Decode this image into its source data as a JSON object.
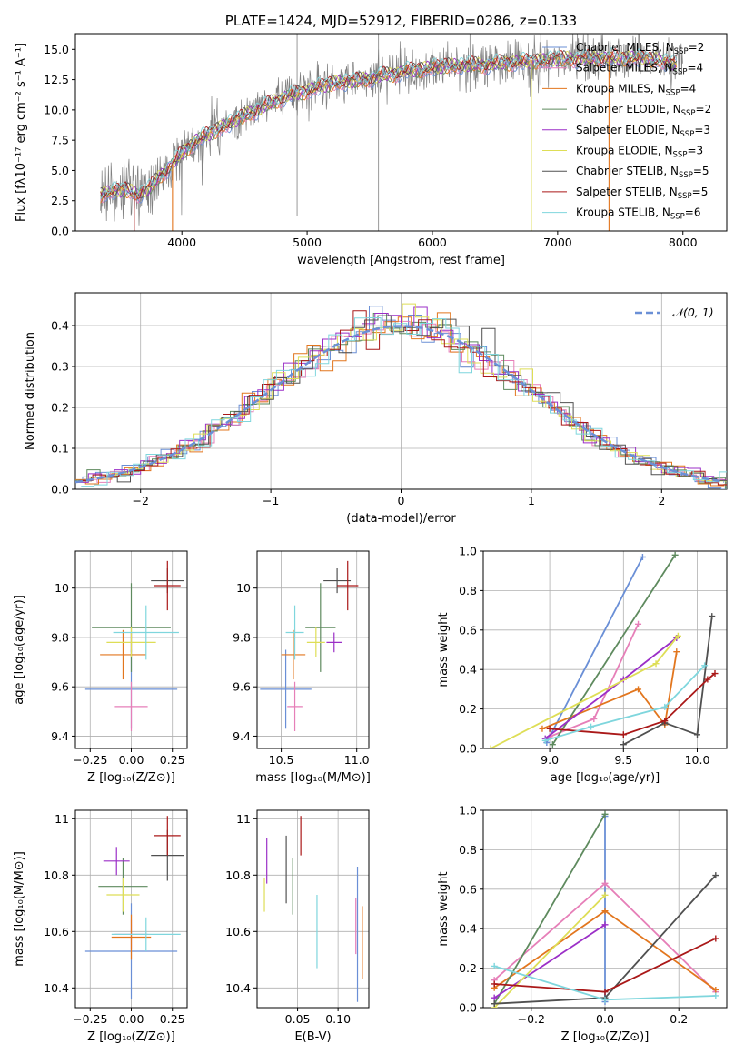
{
  "colors": {
    "miles_chabrier": "#6a8fd6",
    "miles_salpeter": "#e67fb8",
    "miles_kroupa": "#e2761e",
    "elodie_chabrier": "#5e8a5e",
    "elodie_salpeter": "#9b2fc7",
    "elodie_kroupa": "#dede56",
    "stelib_chabrier": "#505050",
    "stelib_salpeter": "#aa1818",
    "stelib_kroupa": "#7fd6dd",
    "data": "#808080",
    "grid": "#b0b0b0"
  },
  "chart_data": [
    {
      "id": "spectrum",
      "type": "line",
      "title": "PLATE=1424, MJD=52912, FIBERID=0286, z=0.133",
      "xlabel": "wavelength [Angstrom, rest frame]",
      "ylabel": "Flux [fλ10⁻¹⁷ erg cm⁻² s⁻¹ A⁻¹]",
      "xlim": [
        3150,
        8350
      ],
      "ylim": [
        0,
        16.3
      ],
      "xticks": [
        4000,
        5000,
        6000,
        7000,
        8000
      ],
      "yticks": [
        "0.0",
        "2.5",
        "5.0",
        "7.5",
        "10.0",
        "12.5",
        "15.0"
      ],
      "grid": false,
      "legend_position": "top-right",
      "legend": [
        {
          "label": "Chabrier MILES, N",
          "sub": "SSP",
          "suffix": "=2",
          "color": "miles_chabrier"
        },
        {
          "label": "Salpeter MILES, N",
          "sub": "SSP",
          "suffix": "=4",
          "color": "miles_salpeter"
        },
        {
          "label": "Kroupa MILES, N",
          "sub": "SSP",
          "suffix": "=4",
          "color": "miles_kroupa"
        },
        {
          "label": "Chabrier ELODIE, N",
          "sub": "SSP",
          "suffix": "=2",
          "color": "elodie_chabrier"
        },
        {
          "label": "Salpeter ELODIE, N",
          "sub": "SSP",
          "suffix": "=3",
          "color": "elodie_salpeter"
        },
        {
          "label": "Kroupa ELODIE, N",
          "sub": "SSP",
          "suffix": "=3",
          "color": "elodie_kroupa"
        },
        {
          "label": "Chabrier STELIB, N",
          "sub": "SSP",
          "suffix": "=5",
          "color": "stelib_chabrier"
        },
        {
          "label": "Salpeter STELIB, N",
          "sub": "SSP",
          "suffix": "=5",
          "color": "stelib_salpeter"
        },
        {
          "label": "Kroupa STELIB, N",
          "sub": "SSP",
          "suffix": "=6",
          "color": "stelib_kroupa"
        }
      ],
      "continuum": [
        [
          3350,
          3.0
        ],
        [
          3450,
          3.3
        ],
        [
          3550,
          3.4
        ],
        [
          3650,
          3.0
        ],
        [
          3750,
          3.6
        ],
        [
          3850,
          4.8
        ],
        [
          3950,
          5.8
        ],
        [
          4000,
          6.4
        ],
        [
          4100,
          7.4
        ],
        [
          4250,
          8.2
        ],
        [
          4400,
          9.0
        ],
        [
          4600,
          10.0
        ],
        [
          4800,
          11.0
        ],
        [
          5000,
          11.6
        ],
        [
          5200,
          12.2
        ],
        [
          5400,
          12.4
        ],
        [
          5600,
          12.8
        ],
        [
          5800,
          13.2
        ],
        [
          6000,
          13.5
        ],
        [
          6200,
          13.7
        ],
        [
          6400,
          13.7
        ],
        [
          6600,
          13.9
        ],
        [
          6800,
          14.0
        ],
        [
          7000,
          14.2
        ],
        [
          7200,
          14.2
        ],
        [
          7400,
          14.3
        ],
        [
          7600,
          14.3
        ],
        [
          7800,
          14.1
        ],
        [
          7950,
          13.8
        ]
      ],
      "data_spikes": [
        [
          4920,
          1.2,
          16.3
        ],
        [
          5570,
          0.0,
          16.3
        ],
        [
          6300,
          11.5,
          16.3
        ],
        [
          6865,
          12.0,
          16.3
        ],
        [
          7240,
          12.5,
          16.3
        ]
      ],
      "model_dropouts": [
        {
          "x": 3620,
          "series": "stelib_salpeter"
        },
        {
          "x": 3925,
          "series": "miles_kroupa"
        },
        {
          "x": 6790,
          "series": "elodie_kroupa"
        },
        {
          "x": 7410,
          "series": "miles_kroupa"
        }
      ]
    },
    {
      "id": "residuals",
      "type": "line",
      "xlabel": "(data-model)/error",
      "ylabel": "Normed distribution",
      "xlim": [
        -2.5,
        2.5
      ],
      "ylim": [
        0,
        0.48
      ],
      "xticks": [
        "−2",
        "−1",
        "0",
        "1",
        "2"
      ],
      "xtick_values": [
        -2,
        -1,
        0,
        1,
        2
      ],
      "yticks": [
        "0.0",
        "0.1",
        "0.2",
        "0.3",
        "0.4"
      ],
      "grid": true,
      "legend_position": "top-right",
      "gaussian_label": "𝒩(0, 1)",
      "gaussian_color": "#6a8fd6",
      "gaussian": {
        "mean": 0,
        "sigma": 1
      }
    },
    {
      "id": "age-vs-Z",
      "type": "scatter",
      "xlabel": "Z [log₁₀(Z/Z⊙)]",
      "ylabel": "age  [log₁₀(age/yr)]",
      "xlim": [
        -0.34,
        0.34
      ],
      "ylim": [
        9.35,
        10.15
      ],
      "xticks": [
        -0.25,
        0.0,
        0.25
      ],
      "xtick_labels": [
        "−0.25",
        "0.00",
        "0.25"
      ],
      "yticks": [
        9.4,
        9.6,
        9.8,
        10.0
      ],
      "grid": true,
      "points": [
        {
          "series": "miles_chabrier",
          "x": 0.0,
          "xerr": 0.28,
          "y": 9.59,
          "yerr": 0.16
        },
        {
          "series": "miles_salpeter",
          "x": 0.0,
          "xerr": 0.1,
          "y": 9.52,
          "yerr": 0.1
        },
        {
          "series": "miles_kroupa",
          "x": -0.05,
          "xerr": 0.14,
          "y": 9.73,
          "yerr": 0.1
        },
        {
          "series": "elodie_chabrier",
          "x": 0.0,
          "xerr": 0.24,
          "y": 9.84,
          "yerr": 0.18
        },
        {
          "series": "elodie_salpeter",
          "x": 0.0,
          "xerr": 0.0,
          "y": 9.78,
          "yerr": 0.04
        },
        {
          "series": "elodie_kroupa",
          "x": 0.0,
          "xerr": 0.15,
          "y": 9.78,
          "yerr": 0.06
        },
        {
          "series": "stelib_chabrier",
          "x": 0.22,
          "xerr": 0.1,
          "y": 10.03,
          "yerr": 0.05
        },
        {
          "series": "stelib_salpeter",
          "x": 0.22,
          "xerr": 0.08,
          "y": 10.01,
          "yerr": 0.1
        },
        {
          "series": "stelib_kroupa",
          "x": 0.09,
          "xerr": 0.2,
          "y": 9.82,
          "yerr": 0.11
        }
      ]
    },
    {
      "id": "age-vs-mass",
      "type": "scatter",
      "xlabel": "mass [log₁₀(M/M⊙)]",
      "xlim": [
        10.34,
        11.08
      ],
      "ylim": [
        9.35,
        10.15
      ],
      "xticks": [
        10.5,
        11.0
      ],
      "xtick_labels": [
        "10.5",
        "11.0"
      ],
      "yticks": [
        9.4,
        9.6,
        9.8,
        10.0
      ],
      "grid": true,
      "points": [
        {
          "series": "miles_chabrier",
          "x": 10.53,
          "xerr": 0.17,
          "y": 9.59,
          "yerr": 0.16
        },
        {
          "series": "miles_salpeter",
          "x": 10.59,
          "xerr": 0.05,
          "y": 9.52,
          "yerr": 0.1
        },
        {
          "series": "miles_kroupa",
          "x": 10.58,
          "xerr": 0.08,
          "y": 9.73,
          "yerr": 0.1
        },
        {
          "series": "elodie_chabrier",
          "x": 10.76,
          "xerr": 0.1,
          "y": 9.84,
          "yerr": 0.18
        },
        {
          "series": "elodie_salpeter",
          "x": 10.85,
          "xerr": 0.05,
          "y": 9.78,
          "yerr": 0.04
        },
        {
          "series": "elodie_kroupa",
          "x": 10.73,
          "xerr": 0.06,
          "y": 9.78,
          "yerr": 0.06
        },
        {
          "series": "stelib_chabrier",
          "x": 10.87,
          "xerr": 0.09,
          "y": 10.03,
          "yerr": 0.05
        },
        {
          "series": "stelib_salpeter",
          "x": 10.94,
          "xerr": 0.07,
          "y": 10.01,
          "yerr": 0.1
        },
        {
          "series": "stelib_kroupa",
          "x": 10.59,
          "xerr": 0.06,
          "y": 9.82,
          "yerr": 0.11
        }
      ]
    },
    {
      "id": "weight-vs-age",
      "type": "line",
      "xlabel": "age  [log₁₀(age/yr)]",
      "ylabel": "mass weight",
      "xlim": [
        8.55,
        10.2
      ],
      "ylim": [
        0,
        1.0
      ],
      "xticks": [
        9.0,
        9.5,
        10.0
      ],
      "xtick_labels": [
        "9.0",
        "9.5",
        "10.0"
      ],
      "yticks": [
        0.0,
        0.2,
        0.4,
        0.6,
        0.8,
        1.0
      ],
      "ytick_labels": [
        "0.0",
        "0.2",
        "0.4",
        "0.6",
        "0.8",
        "1.0"
      ],
      "grid": true,
      "series": [
        {
          "series": "miles_chabrier",
          "x": [
            8.98,
            9.63
          ],
          "y": [
            0.03,
            0.97
          ]
        },
        {
          "series": "miles_salpeter",
          "x": [
            9.0,
            9.3,
            9.6
          ],
          "y": [
            0.06,
            0.15,
            0.63
          ]
        },
        {
          "series": "miles_kroupa",
          "x": [
            8.95,
            9.6,
            9.78,
            9.86
          ],
          "y": [
            0.1,
            0.3,
            0.12,
            0.49
          ]
        },
        {
          "series": "elodie_chabrier",
          "x": [
            9.02,
            9.85
          ],
          "y": [
            0.02,
            0.98
          ]
        },
        {
          "series": "elodie_salpeter",
          "x": [
            8.97,
            9.5,
            9.86
          ],
          "y": [
            0.05,
            0.35,
            0.56
          ]
        },
        {
          "series": "elodie_kroupa",
          "x": [
            8.6,
            9.72,
            9.87
          ],
          "y": [
            0.0,
            0.43,
            0.57
          ]
        },
        {
          "series": "stelib_chabrier",
          "x": [
            9.5,
            9.78,
            10.0,
            10.1
          ],
          "y": [
            0.02,
            0.13,
            0.07,
            0.67
          ]
        },
        {
          "series": "stelib_salpeter",
          "x": [
            9.0,
            9.5,
            9.78,
            10.07,
            10.12
          ],
          "y": [
            0.1,
            0.07,
            0.14,
            0.35,
            0.38
          ]
        },
        {
          "series": "stelib_kroupa",
          "x": [
            8.97,
            9.28,
            9.78,
            10.05
          ],
          "y": [
            0.04,
            0.11,
            0.21,
            0.42
          ]
        }
      ]
    },
    {
      "id": "mass-vs-Z",
      "type": "scatter",
      "xlabel": "Z [log₁₀(Z/Z⊙)]",
      "ylabel": "mass [log₁₀(M/M⊙)]",
      "xlim": [
        -0.34,
        0.34
      ],
      "ylim": [
        10.33,
        11.03
      ],
      "xticks": [
        -0.25,
        0.0,
        0.25
      ],
      "xtick_labels": [
        "−0.25",
        "0.00",
        "0.25"
      ],
      "yticks": [
        10.4,
        10.6,
        10.8,
        11.0
      ],
      "grid": true,
      "points": [
        {
          "series": "miles_chabrier",
          "x": 0.0,
          "xerr": 0.28,
          "y": 10.53,
          "yerr": 0.17
        },
        {
          "series": "miles_salpeter",
          "x": 0.0,
          "xerr": 0.1,
          "y": 10.59,
          "yerr": 0.05
        },
        {
          "series": "miles_kroupa",
          "x": 0.0,
          "xerr": 0.12,
          "y": 10.58,
          "yerr": 0.08
        },
        {
          "series": "elodie_chabrier",
          "x": -0.05,
          "xerr": 0.15,
          "y": 10.76,
          "yerr": 0.1
        },
        {
          "series": "elodie_salpeter",
          "x": -0.09,
          "xerr": 0.08,
          "y": 10.85,
          "yerr": 0.05
        },
        {
          "series": "elodie_kroupa",
          "x": -0.05,
          "xerr": 0.1,
          "y": 10.73,
          "yerr": 0.06
        },
        {
          "series": "stelib_chabrier",
          "x": 0.22,
          "xerr": 0.1,
          "y": 10.87,
          "yerr": 0.09
        },
        {
          "series": "stelib_salpeter",
          "x": 0.22,
          "xerr": 0.08,
          "y": 10.94,
          "yerr": 0.07
        },
        {
          "series": "stelib_kroupa",
          "x": 0.09,
          "xerr": 0.21,
          "y": 10.59,
          "yerr": 0.06
        }
      ]
    },
    {
      "id": "mass-vs-ebv",
      "type": "scatter",
      "xlabel": "E(B-V)",
      "xlim": [
        0.0,
        0.138
      ],
      "ylim": [
        10.33,
        11.03
      ],
      "xticks": [
        0.05,
        0.1
      ],
      "xtick_labels": [
        "0.05",
        "0.10"
      ],
      "yticks": [
        10.4,
        10.6,
        10.8,
        11.0
      ],
      "grid": true,
      "points": [
        {
          "series": "miles_chabrier",
          "x": 0.124,
          "xerr": 0,
          "y": 10.59,
          "yerr": 0.24
        },
        {
          "series": "miles_salpeter",
          "x": 0.122,
          "xerr": 0,
          "y": 10.62,
          "yerr": 0.1
        },
        {
          "series": "miles_kroupa",
          "x": 0.13,
          "xerr": 0,
          "y": 10.56,
          "yerr": 0.13
        },
        {
          "series": "elodie_chabrier",
          "x": 0.044,
          "xerr": 0,
          "y": 10.76,
          "yerr": 0.1
        },
        {
          "series": "elodie_salpeter",
          "x": 0.012,
          "xerr": 0,
          "y": 10.85,
          "yerr": 0.08
        },
        {
          "series": "elodie_kroupa",
          "x": 0.009,
          "xerr": 0,
          "y": 10.73,
          "yerr": 0.06
        },
        {
          "series": "stelib_chabrier",
          "x": 0.036,
          "xerr": 0,
          "y": 10.82,
          "yerr": 0.12
        },
        {
          "series": "stelib_salpeter",
          "x": 0.054,
          "xerr": 0,
          "y": 10.94,
          "yerr": 0.07
        },
        {
          "series": "stelib_kroupa",
          "x": 0.074,
          "xerr": 0,
          "y": 10.6,
          "yerr": 0.13
        }
      ]
    },
    {
      "id": "weight-vs-Z",
      "type": "line",
      "xlabel": "Z [log₁₀(Z/Z⊙)]",
      "ylabel": "mass weight",
      "xlim": [
        -0.33,
        0.33
      ],
      "ylim": [
        0,
        1.0
      ],
      "xticks": [
        -0.2,
        0.0,
        0.2
      ],
      "xtick_labels": [
        "−0.2",
        "0.0",
        "0.2"
      ],
      "yticks": [
        0.0,
        0.2,
        0.4,
        0.6,
        0.8,
        1.0
      ],
      "ytick_labels": [
        "0.0",
        "0.2",
        "0.4",
        "0.6",
        "0.8",
        "1.0"
      ],
      "grid": true,
      "series": [
        {
          "series": "miles_chabrier",
          "x": [
            0.0,
            0.0
          ],
          "y": [
            0.03,
            0.97
          ]
        },
        {
          "series": "miles_salpeter",
          "x": [
            -0.3,
            0.0,
            0.3
          ],
          "y": [
            0.14,
            0.63,
            0.08
          ]
        },
        {
          "series": "miles_kroupa",
          "x": [
            -0.3,
            0.0,
            0.3
          ],
          "y": [
            0.1,
            0.49,
            0.09
          ]
        },
        {
          "series": "elodie_chabrier",
          "x": [
            -0.3,
            0.0
          ],
          "y": [
            0.02,
            0.98
          ]
        },
        {
          "series": "elodie_salpeter",
          "x": [
            -0.3,
            0.0
          ],
          "y": [
            0.05,
            0.42
          ]
        },
        {
          "series": "elodie_kroupa",
          "x": [
            -0.3,
            0.0
          ],
          "y": [
            0.0,
            0.57
          ]
        },
        {
          "series": "stelib_chabrier",
          "x": [
            -0.3,
            0.0,
            0.3
          ],
          "y": [
            0.02,
            0.05,
            0.67
          ]
        },
        {
          "series": "stelib_salpeter",
          "x": [
            -0.3,
            0.0,
            0.3
          ],
          "y": [
            0.12,
            0.08,
            0.35
          ]
        },
        {
          "series": "stelib_kroupa",
          "x": [
            -0.3,
            0.0,
            0.3
          ],
          "y": [
            0.21,
            0.04,
            0.06
          ]
        }
      ]
    }
  ]
}
